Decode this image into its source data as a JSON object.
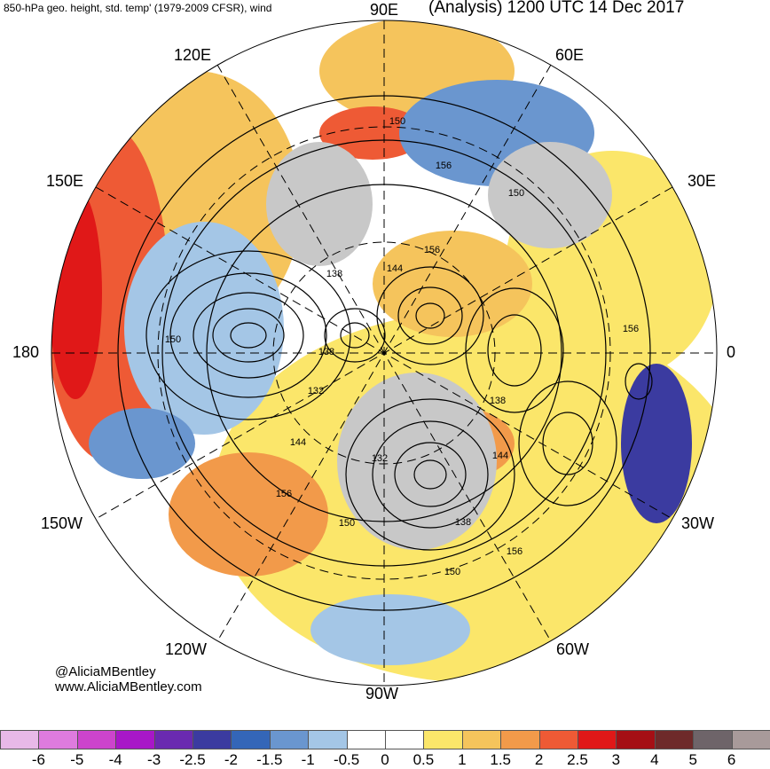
{
  "header": {
    "left_title": "850-hPa geo. height, std. temp' (1979-2009 CFSR), wind",
    "right_title": "(Analysis) 1200 UTC 14 Dec 2017"
  },
  "longitude_labels": {
    "lon_90e": "90E",
    "lon_120e": "120E",
    "lon_60e": "60E",
    "lon_150e": "150E",
    "lon_30e": "30E",
    "lon_180": "180",
    "lon_0": "0",
    "lon_150w": "150W",
    "lon_30w": "30W",
    "lon_120w": "120W",
    "lon_60w": "60W",
    "lon_90w": "90W"
  },
  "contour_labels": [
    "150",
    "156",
    "150",
    "156",
    "144",
    "138",
    "150",
    "138",
    "156",
    "132",
    "144",
    "138",
    "132",
    "150",
    "156",
    "138",
    "150",
    "144",
    "156"
  ],
  "credit": {
    "handle": "@AliciaMBentley",
    "site": "www.AliciaMBentley.com"
  },
  "colorbar": {
    "labels": [
      "-6",
      "-5",
      "-4",
      "-3",
      "-2.5",
      "-2",
      "-1.5",
      "-1",
      "-0.5",
      "0",
      "0.5",
      "1",
      "1.5",
      "2",
      "2.5",
      "3",
      "4",
      "5",
      "6"
    ],
    "colors": [
      "#e8b9e8",
      "#de7bde",
      "#cc44cc",
      "#a817c8",
      "#6a2ab0",
      "#3b3ba0",
      "#3466b8",
      "#6a96cf",
      "#a4c6e6",
      "#ffffff",
      "#ffffff",
      "#fbe66a",
      "#f5c45c",
      "#f29a4a",
      "#ee5a35",
      "#e01818",
      "#a50f15",
      "#6e2a2a",
      "#6e6469",
      "#a89a9a"
    ]
  },
  "colors": {
    "land_gray": "#c8c8c8",
    "contour": "#000000",
    "wind_barb": "#000000"
  }
}
